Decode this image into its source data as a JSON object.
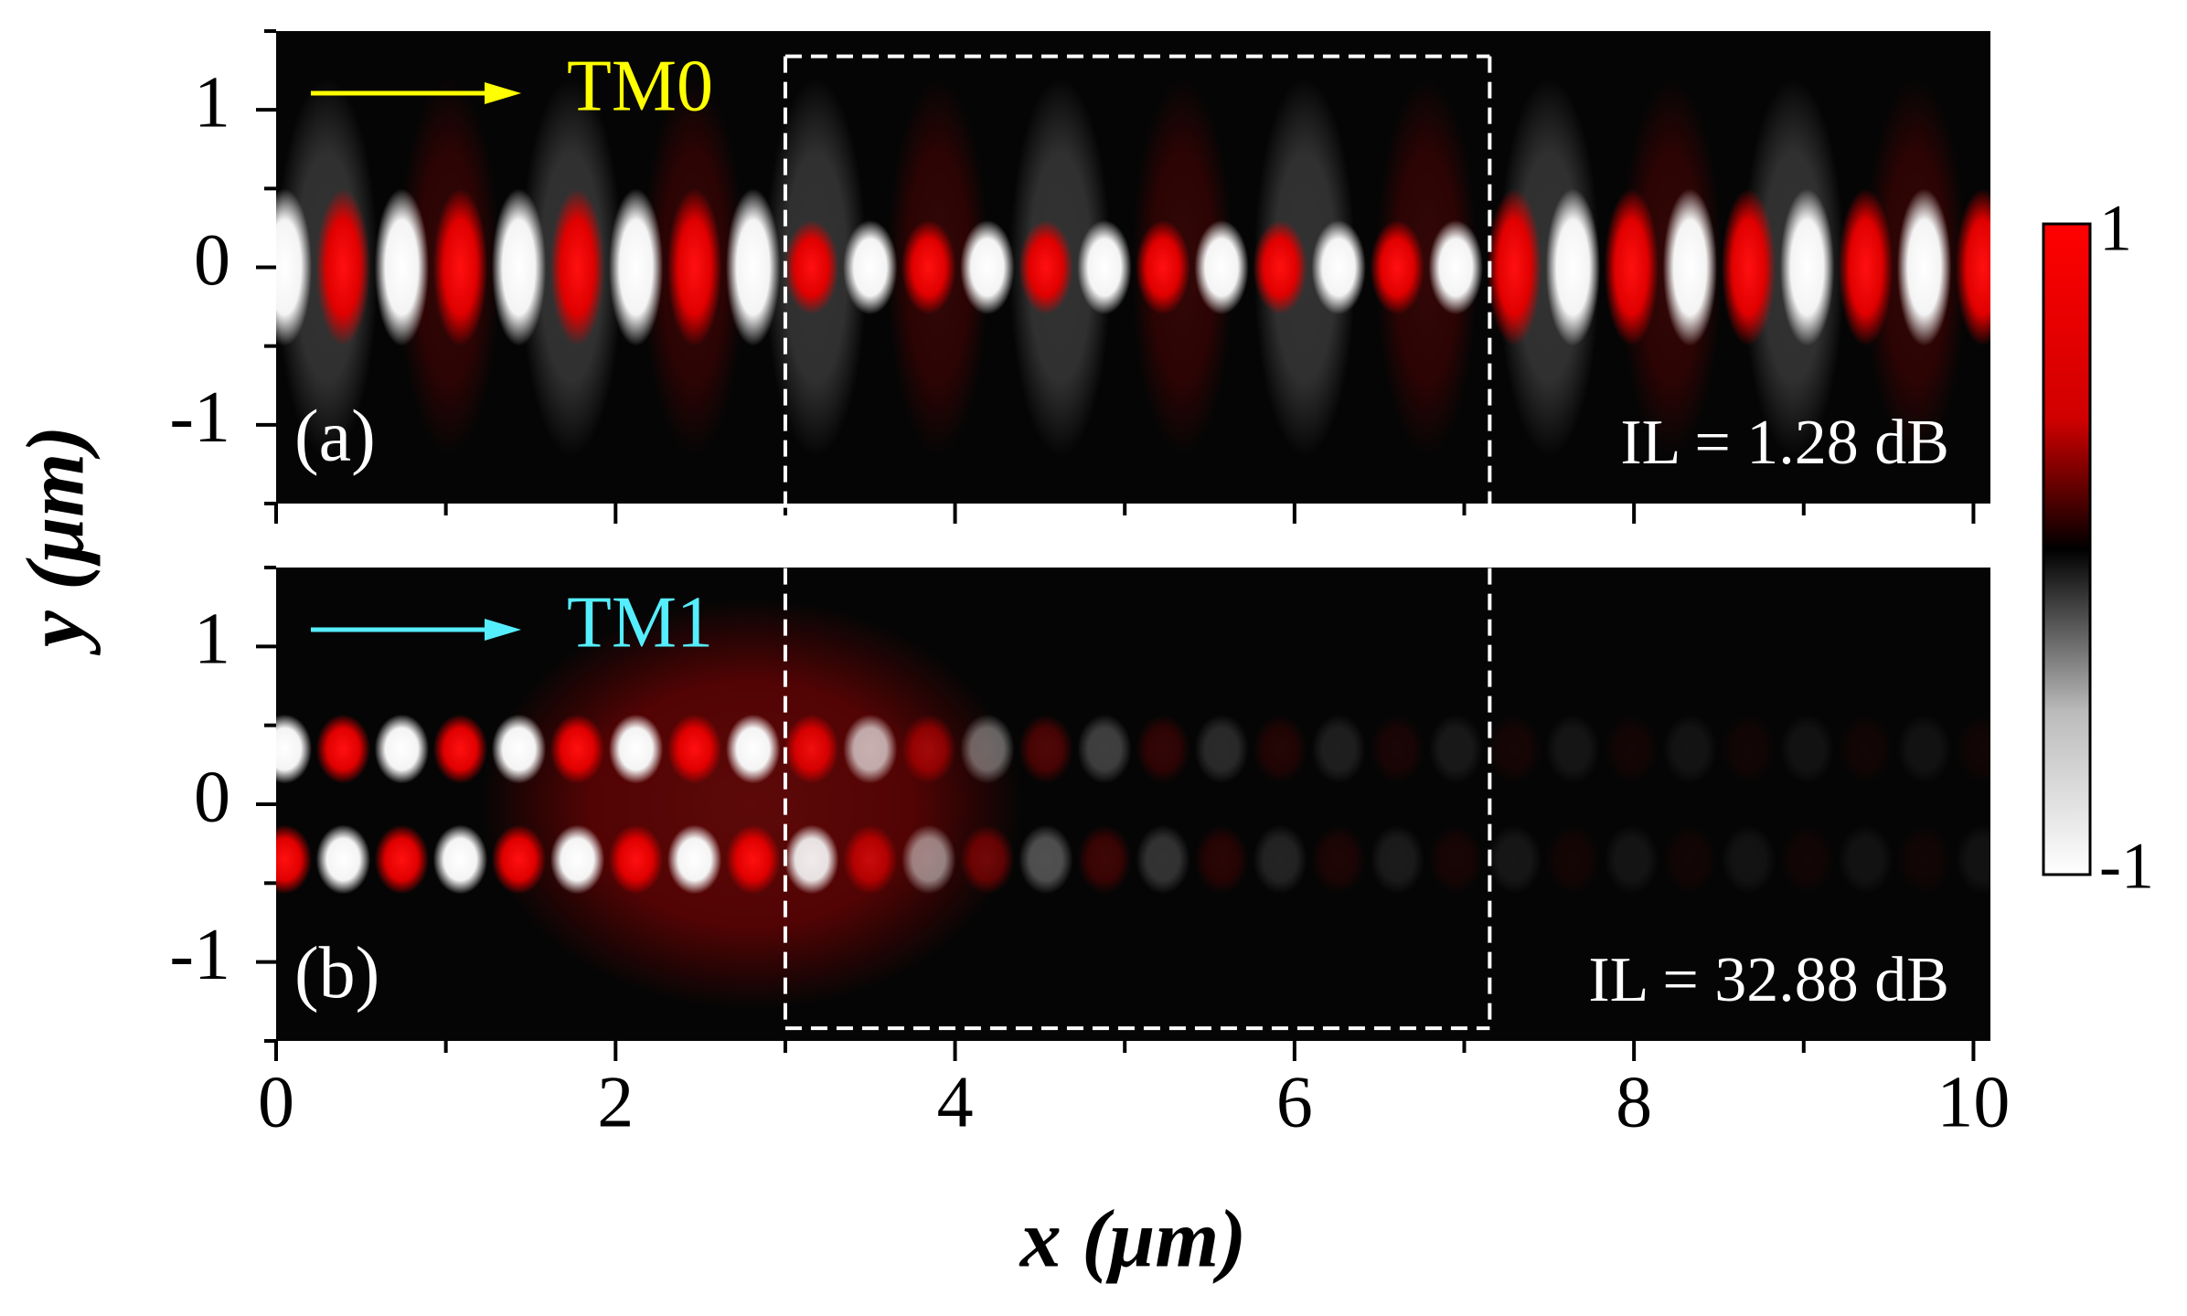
{
  "chart_data": [
    {
      "type": "field",
      "label": "(a)",
      "mode": "TM0",
      "mode_color": "#ffff00",
      "annotation": "IL = 1.28 dB",
      "xlim": [
        0,
        10.1
      ],
      "xticks": [
        0,
        2,
        4,
        6,
        8,
        10
      ],
      "xminor": [
        1,
        3,
        5,
        7,
        9
      ],
      "ylim": [
        -1.5,
        1.5
      ],
      "yticks": [
        -1,
        0,
        1
      ],
      "yminor": [
        -1.5,
        -0.5,
        0.5,
        1.5
      ]
    },
    {
      "type": "field",
      "label": "(b)",
      "mode": "TM1",
      "mode_color": "#55eeff",
      "annotation": "IL = 32.88 dB",
      "xlim": [
        0,
        10.1
      ],
      "xticks": [
        0,
        2,
        4,
        6,
        8,
        10
      ],
      "xminor": [
        1,
        3,
        5,
        7,
        9
      ],
      "ylim": [
        -1.5,
        1.5
      ],
      "yticks": [
        -1,
        0,
        1
      ],
      "yminor": [
        -1.5,
        -0.5,
        0.5,
        1.5
      ],
      "xlabel": "x (μm)"
    }
  ],
  "ylabel": "y (μm)",
  "region": {
    "x": [
      3,
      7.15
    ],
    "y": [
      -1.42,
      1.34
    ]
  },
  "colorbar": {
    "lim": [
      -1,
      1
    ],
    "ticks": [
      -1,
      1
    ]
  }
}
